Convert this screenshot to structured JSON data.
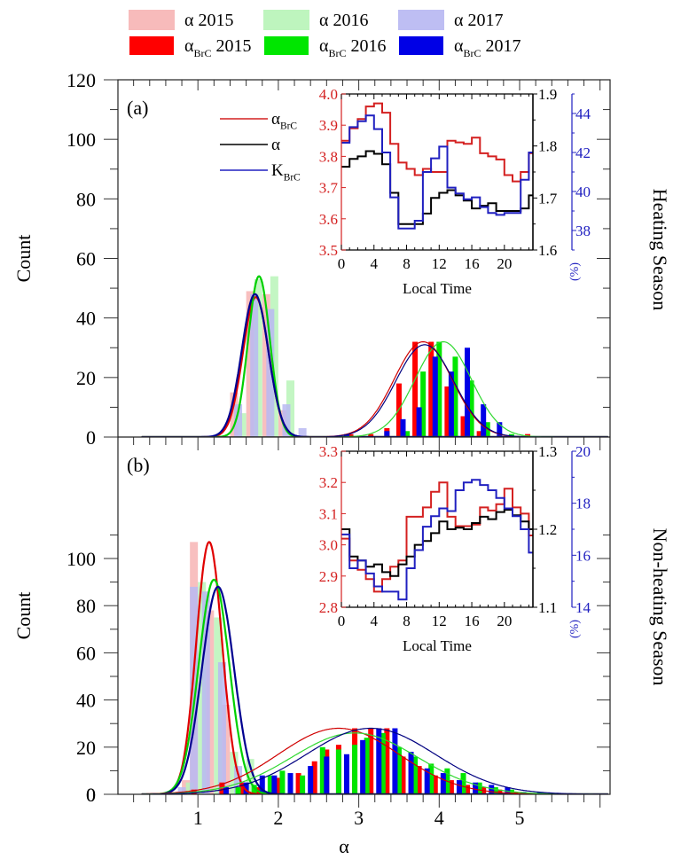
{
  "chart_data": [
    {
      "id": "legend",
      "entries": [
        {
          "label": "α 2015",
          "color": "#f7b4b4",
          "style": "light"
        },
        {
          "label": "α 2016",
          "color": "#b8f5b8",
          "style": "light"
        },
        {
          "label": "α 2017",
          "color": "#b8b8f2",
          "style": "light"
        },
        {
          "label": "α",
          "sub": "BrC",
          "year": "2015",
          "color": "#ff0000",
          "style": "solid"
        },
        {
          "label": "α",
          "sub": "BrC",
          "year": "2016",
          "color": "#00e600",
          "style": "solid"
        },
        {
          "label": "α",
          "sub": "BrC",
          "year": "2017",
          "color": "#0000e6",
          "style": "solid"
        }
      ],
      "placement": "top"
    },
    {
      "id": "panel-a",
      "type": "bar",
      "panel_label": "(a)",
      "side_label": "Heating Season",
      "ylabel": "Count",
      "xlim": [
        0,
        6.1
      ],
      "ylim": [
        0,
        120
      ],
      "yticks": [
        0,
        20,
        40,
        60,
        80,
        100,
        120
      ],
      "bin_width": 0.1,
      "series": [
        {
          "name": "α 2015",
          "color": "#f7b4b4",
          "x": [
            1.45,
            1.65,
            1.85,
            2.05
          ],
          "values": [
            15,
            49,
            48,
            9
          ]
        },
        {
          "name": "α 2016",
          "color": "#b8f5b8",
          "x": [
            1.55,
            1.75,
            1.95,
            2.15
          ],
          "values": [
            8,
            53,
            54,
            19
          ]
        },
        {
          "name": "α 2017",
          "color": "#b8b8f2",
          "x": [
            1.5,
            1.7,
            1.9,
            2.1,
            2.3
          ],
          "values": [
            11,
            48,
            43,
            11,
            3
          ]
        },
        {
          "name": "αBrC 2015",
          "color": "#ff0000",
          "x": [
            2.9,
            3.15,
            3.35,
            3.5,
            3.7,
            3.9,
            4.1,
            4.3,
            4.5,
            5.1
          ],
          "values": [
            1,
            1,
            3,
            18,
            32,
            32,
            17,
            7,
            2,
            1
          ]
        },
        {
          "name": "αBrC 2016",
          "color": "#00e600",
          "x": [
            3.6,
            3.8,
            4.0,
            4.2,
            4.4,
            4.6,
            4.9
          ],
          "values": [
            2,
            22,
            32,
            27,
            19,
            5,
            1
          ]
        },
        {
          "name": "αBrC 2017",
          "color": "#0000e6",
          "x": [
            2.85,
            3.35,
            3.55,
            3.75,
            3.95,
            4.15,
            4.35,
            4.55,
            4.75
          ],
          "values": [
            1,
            2,
            6,
            10,
            27,
            22,
            30,
            11,
            5
          ]
        }
      ],
      "fits": [
        {
          "name": "α 2015 fit",
          "color": "#e00000",
          "mu": 1.72,
          "sigma": 0.16,
          "peak": 47
        },
        {
          "name": "α 2016 fit",
          "color": "#00d000",
          "mu": 1.76,
          "sigma": 0.135,
          "peak": 54
        },
        {
          "name": "α 2017 fit",
          "color": "#000090",
          "mu": 1.71,
          "sigma": 0.165,
          "peak": 48
        },
        {
          "name": "αBrC 2015 fit",
          "color": "#d00000",
          "mu": 3.8,
          "sigma": 0.36,
          "peak": 32
        },
        {
          "name": "αBrC 2016 fit",
          "color": "#30d830",
          "mu": 4.05,
          "sigma": 0.35,
          "peak": 32
        },
        {
          "name": "αBrC 2017 fit",
          "color": "#000080",
          "mu": 3.82,
          "sigma": 0.36,
          "peak": 31
        }
      ],
      "inset": {
        "xlabel": "Local Time",
        "xticks": [
          0,
          4,
          8,
          12,
          16,
          20
        ],
        "xlim": [
          0,
          23.5
        ],
        "left_axis": {
          "ylim": [
            3.5,
            4.0
          ],
          "ticks": [
            3.5,
            3.6,
            3.7,
            3.8,
            3.9,
            4.0
          ],
          "color": "#d42020"
        },
        "right_axis": {
          "ylim": [
            1.6,
            1.9
          ],
          "ticks": [
            1.6,
            1.7,
            1.8,
            1.9
          ],
          "color": "#000000"
        },
        "far_right_axis": {
          "ylim": [
            37,
            45
          ],
          "ticks": [
            38,
            40,
            42,
            44
          ],
          "label": "(%)",
          "color": "#2020c0"
        },
        "legend": [
          {
            "label": "α",
            "sub": "BrC",
            "color": "#d42020"
          },
          {
            "label": "α",
            "sub": "",
            "color": "#000000"
          },
          {
            "label": "K",
            "sub": "BrC",
            "color": "#2020c0"
          }
        ],
        "series": [
          {
            "name": "αBrC",
            "axis": "left",
            "color": "#d42020",
            "values": [
              3.85,
              3.89,
              3.92,
              3.96,
              3.97,
              3.94,
              3.84,
              3.78,
              3.76,
              3.74,
              3.76,
              3.75,
              3.75,
              3.85,
              3.845,
              3.84,
              3.86,
              3.81,
              3.8,
              3.79,
              3.74,
              3.72,
              3.75,
              3.81
            ]
          },
          {
            "name": "α",
            "axis": "right",
            "color": "#000000",
            "values": [
              1.76,
              1.775,
              1.78,
              1.79,
              1.785,
              1.765,
              1.71,
              1.65,
              1.65,
              1.65,
              1.67,
              1.7,
              1.71,
              1.715,
              1.705,
              1.695,
              1.68,
              1.685,
              1.69,
              1.675,
              1.675,
              1.675,
              1.68,
              1.705
            ]
          },
          {
            "name": "KBrC",
            "axis": "far_right",
            "color": "#2020c0",
            "values": [
              42.5,
              43.3,
              43.6,
              43.9,
              43.2,
              42.0,
              39.7,
              38.1,
              38.1,
              38.5,
              41.0,
              41.7,
              42.3,
              40.2,
              39.9,
              39.6,
              39.7,
              39.2,
              38.9,
              38.8,
              38.9,
              38.9,
              40.6,
              42.0
            ]
          }
        ]
      }
    },
    {
      "id": "panel-b",
      "type": "bar",
      "panel_label": "(b)",
      "side_label": "Non-heating Season",
      "ylabel": "Count",
      "xlabel": "α",
      "xlim": [
        0,
        6.1
      ],
      "ylim": [
        0,
        115
      ],
      "yticks": [
        0,
        20,
        40,
        60,
        80,
        100
      ],
      "xticks": [
        1,
        2,
        3,
        4,
        5
      ],
      "bin_width": 0.1,
      "series": [
        {
          "name": "α 2015",
          "color": "#f7b4b4",
          "x": [
            0.85,
            0.95,
            1.15,
            1.35,
            1.55
          ],
          "values": [
            6,
            107,
            78,
            38,
            3
          ]
        },
        {
          "name": "α 2016",
          "color": "#b8f5b8",
          "x": [
            0.9,
            1.05,
            1.25,
            1.45,
            1.65
          ],
          "values": [
            5,
            90,
            75,
            18,
            15
          ]
        },
        {
          "name": "α 2017",
          "color": "#b8b8f2",
          "x": [
            0.8,
            0.95,
            1.1,
            1.3,
            1.5,
            1.7
          ],
          "values": [
            3,
            88,
            86,
            56,
            12,
            1
          ]
        },
        {
          "name": "αBrC 2015",
          "color": "#ff0000",
          "x": [
            0.95,
            1.3,
            1.55,
            1.75,
            2.0,
            2.25,
            2.45,
            2.6,
            2.75,
            2.95,
            3.15,
            3.35,
            3.55,
            3.75,
            3.95,
            4.15,
            4.35,
            4.55,
            4.75,
            4.95
          ],
          "values": [
            2,
            5,
            5,
            3,
            7,
            9,
            14,
            19,
            21,
            28,
            28,
            28,
            16,
            12,
            8,
            6,
            4,
            3,
            2,
            1
          ]
        },
        {
          "name": "αBrC 2016",
          "color": "#00e600",
          "x": [
            1.5,
            1.7,
            1.9,
            2.05,
            2.3,
            2.55,
            2.75,
            2.95,
            3.1,
            3.3,
            3.5,
            3.7,
            3.9,
            4.1,
            4.3,
            4.5,
            4.7,
            4.9
          ],
          "values": [
            3,
            4,
            8,
            10,
            8,
            20,
            19,
            21,
            24,
            26,
            20,
            16,
            13,
            11,
            9,
            5,
            3,
            2
          ]
        },
        {
          "name": "αBrC 2017",
          "color": "#0000e6",
          "x": [
            1.35,
            1.6,
            1.8,
            1.95,
            2.15,
            2.4,
            2.6,
            2.85,
            3.05,
            3.25,
            3.45,
            3.65,
            3.85,
            4.05,
            4.25,
            4.45,
            4.65,
            4.85,
            5.05,
            5.25
          ],
          "values": [
            3,
            5,
            8,
            8,
            9,
            12,
            16,
            17,
            23,
            28,
            28,
            18,
            11,
            9,
            6,
            5,
            4,
            3,
            1,
            1
          ]
        }
      ],
      "fits": [
        {
          "name": "α 2015 fit",
          "color": "#e00000",
          "mu": 1.14,
          "sigma": 0.16,
          "peak": 107
        },
        {
          "name": "α 2016 fit",
          "color": "#00d000",
          "mu": 1.2,
          "sigma": 0.19,
          "peak": 91
        },
        {
          "name": "α 2017 fit",
          "color": "#000090",
          "mu": 1.25,
          "sigma": 0.2,
          "peak": 88
        },
        {
          "name": "αBrC 2015 fit",
          "color": "#d00000",
          "mu": 2.75,
          "sigma": 0.75,
          "peak": 28
        },
        {
          "name": "αBrC 2016 fit",
          "color": "#30d830",
          "mu": 2.95,
          "sigma": 0.78,
          "peak": 26
        },
        {
          "name": "αBrC 2017 fit",
          "color": "#000080",
          "mu": 3.15,
          "sigma": 0.8,
          "peak": 28
        }
      ],
      "inset": {
        "xlabel": "Local Time",
        "xticks": [
          0,
          4,
          8,
          12,
          16,
          20
        ],
        "xlim": [
          0,
          23.5
        ],
        "left_axis": {
          "ylim": [
            2.8,
            3.3
          ],
          "ticks": [
            2.8,
            2.9,
            3.0,
            3.1,
            3.2,
            3.3
          ],
          "color": "#d42020"
        },
        "right_axis": {
          "ylim": [
            1.1,
            1.3
          ],
          "ticks": [
            1.1,
            1.2,
            1.3
          ],
          "color": "#000000"
        },
        "far_right_axis": {
          "ylim": [
            14,
            20
          ],
          "ticks": [
            14,
            16,
            18,
            20
          ],
          "label": "(%)",
          "color": "#2020c0"
        },
        "series": [
          {
            "name": "αBrC",
            "axis": "left",
            "color": "#d42020",
            "values": [
              3.02,
              2.95,
              2.92,
              2.89,
              2.85,
              2.89,
              2.93,
              2.95,
              3.09,
              3.09,
              3.12,
              3.17,
              3.2,
              3.09,
              3.06,
              3.06,
              3.065,
              3.12,
              3.11,
              3.13,
              3.18,
              3.12,
              3.1,
              3.03
            ]
          },
          {
            "name": "α",
            "axis": "right",
            "color": "#000000",
            "values": [
              1.2,
              1.165,
              1.16,
              1.152,
              1.155,
              1.145,
              1.14,
              1.155,
              1.165,
              1.18,
              1.185,
              1.195,
              1.21,
              1.2,
              1.202,
              1.2,
              1.208,
              1.216,
              1.213,
              1.222,
              1.225,
              1.218,
              1.21,
              1.2
            ]
          },
          {
            "name": "KBrC",
            "axis": "far_right",
            "color": "#2020c0",
            "values": [
              16.8,
              15.5,
              15.8,
              15.3,
              14.8,
              14.6,
              14.6,
              14.3,
              15.5,
              16.2,
              17.1,
              17.5,
              17.8,
              17.7,
              18.5,
              18.8,
              18.9,
              18.7,
              18.5,
              18.2,
              17.8,
              17.5,
              17.0,
              16.1
            ]
          }
        ]
      }
    }
  ]
}
